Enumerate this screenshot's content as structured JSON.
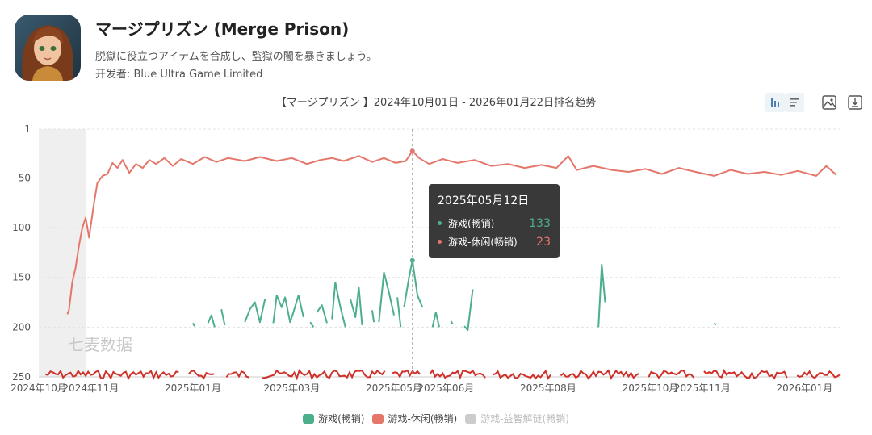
{
  "app": {
    "title": "マージプリズン (Merge Prison)",
    "description": "脱獄に役立つアイテムを合成し、監獄の闇を暴きましょう。",
    "developer_label": "开发者: ",
    "developer": "Blue Ultra Game Limited"
  },
  "toolbar": {
    "icons": [
      "chart-bar-icon",
      "list-icon",
      "image-icon",
      "download-icon"
    ]
  },
  "watermark": "七麦数据",
  "tooltip": {
    "date": "2025年05月12日",
    "rows": [
      {
        "name": "游戏(畅销)",
        "value": "133",
        "color": "#4caf8b"
      },
      {
        "name": "游戏-休闲(畅销)",
        "value": "23",
        "color": "#e5766a"
      }
    ]
  },
  "chart_data": {
    "type": "line",
    "title": "【マージプリズン 】2024年10月01日 - 2026年01月22日排名趋势",
    "y_axis": {
      "ticks": [
        "1",
        "50",
        "100",
        "150",
        "200",
        "250"
      ],
      "range": [
        1,
        250
      ],
      "inverted": true
    },
    "x_axis": {
      "ticks": [
        "2024年10月",
        "2024年11月",
        "2025年01月",
        "2025年03月",
        "2025年05月",
        "2025年06月",
        "2025年08月",
        "2025年10月",
        "2025年11月",
        "2026年01月"
      ],
      "range": [
        "2024-10-01",
        "2026-01-22"
      ]
    },
    "grid": true,
    "legend": {
      "position": "bottom",
      "items": [
        {
          "name": "游戏(畅销)",
          "color": "#4caf8b",
          "active": true
        },
        {
          "name": "游戏-休闲(畅销)",
          "color": "#e5766a",
          "active": true
        },
        {
          "name": "游戏-益智解谜(畅销)",
          "color": "#cccccc",
          "active": false
        }
      ]
    },
    "series": [
      {
        "name": "游戏-休闲(畅销)",
        "color": "#e5766a",
        "points": [
          [
            "2024-10-18",
            187
          ],
          [
            "2024-10-19",
            183
          ],
          [
            "2024-10-21",
            155
          ],
          [
            "2024-10-23",
            140
          ],
          [
            "2024-10-25",
            118
          ],
          [
            "2024-10-27",
            100
          ],
          [
            "2024-10-29",
            90
          ],
          [
            "2024-10-31",
            110
          ],
          [
            "2024-11-03",
            75
          ],
          [
            "2024-11-05",
            55
          ],
          [
            "2024-11-08",
            48
          ],
          [
            "2024-11-11",
            46
          ],
          [
            "2024-11-14",
            35
          ],
          [
            "2024-11-17",
            40
          ],
          [
            "2024-11-20",
            32
          ],
          [
            "2024-11-24",
            45
          ],
          [
            "2024-11-28",
            36
          ],
          [
            "2024-12-02",
            40
          ],
          [
            "2024-12-06",
            32
          ],
          [
            "2024-12-10",
            36
          ],
          [
            "2024-12-15",
            30
          ],
          [
            "2024-12-20",
            38
          ],
          [
            "2024-12-25",
            31
          ],
          [
            "2025-01-01",
            36
          ],
          [
            "2025-01-08",
            29
          ],
          [
            "2025-01-15",
            34
          ],
          [
            "2025-01-22",
            30
          ],
          [
            "2025-02-01",
            33
          ],
          [
            "2025-02-10",
            29
          ],
          [
            "2025-02-20",
            33
          ],
          [
            "2025-03-01",
            30
          ],
          [
            "2025-03-10",
            36
          ],
          [
            "2025-03-18",
            32
          ],
          [
            "2025-03-25",
            30
          ],
          [
            "2025-04-01",
            33
          ],
          [
            "2025-04-10",
            28
          ],
          [
            "2025-04-18",
            34
          ],
          [
            "2025-04-25",
            30
          ],
          [
            "2025-05-02",
            35
          ],
          [
            "2025-05-08",
            33
          ],
          [
            "2025-05-12",
            23
          ],
          [
            "2025-05-16",
            30
          ],
          [
            "2025-05-22",
            36
          ],
          [
            "2025-05-30",
            31
          ],
          [
            "2025-06-08",
            35
          ],
          [
            "2025-06-18",
            32
          ],
          [
            "2025-06-28",
            38
          ],
          [
            "2025-07-08",
            36
          ],
          [
            "2025-07-18",
            40
          ],
          [
            "2025-07-28",
            37
          ],
          [
            "2025-08-06",
            40
          ],
          [
            "2025-08-13",
            28
          ],
          [
            "2025-08-18",
            42
          ],
          [
            "2025-08-28",
            38
          ],
          [
            "2025-09-08",
            42
          ],
          [
            "2025-09-18",
            44
          ],
          [
            "2025-09-28",
            41
          ],
          [
            "2025-10-08",
            46
          ],
          [
            "2025-10-18",
            40
          ],
          [
            "2025-10-28",
            44
          ],
          [
            "2025-11-08",
            48
          ],
          [
            "2025-11-18",
            42
          ],
          [
            "2025-11-28",
            46
          ],
          [
            "2025-12-08",
            44
          ],
          [
            "2025-12-18",
            47
          ],
          [
            "2025-12-28",
            43
          ],
          [
            "2026-01-08",
            48
          ],
          [
            "2026-01-14",
            38
          ],
          [
            "2026-01-20",
            47
          ]
        ]
      },
      {
        "name": "游戏(畅销)",
        "color": "#4caf8b",
        "segments": [
          [
            [
              "2025-01-01",
              196
            ],
            [
              "2025-01-02",
              199
            ]
          ],
          [
            [
              "2025-01-10",
              196
            ],
            [
              "2025-01-12",
              188
            ],
            [
              "2025-01-14",
              200
            ]
          ],
          [
            [
              "2025-01-18",
              182
            ],
            [
              "2025-01-20",
              198
            ]
          ],
          [
            [
              "2025-02-01",
              195
            ],
            [
              "2025-02-04",
              182
            ],
            [
              "2025-02-07",
              175
            ],
            [
              "2025-02-10",
              195
            ],
            [
              "2025-02-13",
              172
            ]
          ],
          [
            [
              "2025-02-18",
              196
            ],
            [
              "2025-02-20",
              168
            ],
            [
              "2025-02-23",
              180
            ],
            [
              "2025-02-25",
              170
            ],
            [
              "2025-02-28",
              195
            ],
            [
              "2025-03-02",
              185
            ],
            [
              "2025-03-05",
              168
            ],
            [
              "2025-03-08",
              190
            ]
          ],
          [
            [
              "2025-03-12",
              195
            ],
            [
              "2025-03-14",
              200
            ]
          ],
          [
            [
              "2025-03-16",
              185
            ],
            [
              "2025-03-19",
              178
            ],
            [
              "2025-03-22",
              196
            ]
          ],
          [
            [
              "2025-03-25",
              192
            ],
            [
              "2025-03-27",
              155
            ],
            [
              "2025-03-30",
              180
            ],
            [
              "2025-04-02",
              200
            ]
          ],
          [
            [
              "2025-04-05",
              172
            ],
            [
              "2025-04-08",
              190
            ],
            [
              "2025-04-10",
              160
            ],
            [
              "2025-04-12",
              198
            ]
          ],
          [
            [
              "2025-04-18",
              183
            ],
            [
              "2025-04-19",
              195
            ]
          ],
          [
            [
              "2025-04-22",
              195
            ],
            [
              "2025-04-25",
              145
            ],
            [
              "2025-04-28",
              165
            ],
            [
              "2025-05-01",
              188
            ]
          ],
          [
            [
              "2025-05-03",
              170
            ],
            [
              "2025-05-05",
              200
            ]
          ],
          [
            [
              "2025-05-07",
              180
            ],
            [
              "2025-05-10",
              150
            ],
            [
              "2025-05-12",
              133
            ],
            [
              "2025-05-15",
              168
            ],
            [
              "2025-05-18",
              180
            ]
          ],
          [
            [
              "2025-05-24",
              200
            ],
            [
              "2025-05-26",
              185
            ],
            [
              "2025-05-28",
              200
            ]
          ],
          [
            [
              "2025-06-04",
              194
            ],
            [
              "2025-06-05",
              197
            ]
          ],
          [
            [
              "2025-06-12",
              199
            ],
            [
              "2025-06-14",
              203
            ],
            [
              "2025-06-17",
              162
            ]
          ],
          [
            [
              "2025-08-31",
              200
            ],
            [
              "2025-09-02",
              137
            ],
            [
              "2025-09-04",
              175
            ]
          ],
          [
            [
              "2025-11-08",
              196
            ],
            [
              "2025-11-09",
              198
            ]
          ]
        ]
      }
    ],
    "crosshair_date": "2025-05-12"
  }
}
